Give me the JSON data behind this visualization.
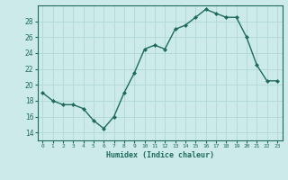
{
  "x": [
    0,
    1,
    2,
    3,
    4,
    5,
    6,
    7,
    8,
    9,
    10,
    11,
    12,
    13,
    14,
    15,
    16,
    17,
    18,
    19,
    20,
    21,
    22,
    23
  ],
  "y": [
    19,
    18,
    17.5,
    17.5,
    17,
    15.5,
    14.5,
    16,
    19,
    21.5,
    24.5,
    25,
    24.5,
    27,
    27.5,
    28.5,
    29.5,
    29,
    28.5,
    28.5,
    26,
    22.5,
    20.5,
    20.5
  ],
  "xlabel": "Humidex (Indice chaleur)",
  "ylim": [
    13,
    30
  ],
  "yticks": [
    14,
    16,
    18,
    20,
    22,
    24,
    26,
    28
  ],
  "xlim": [
    -0.5,
    23.5
  ],
  "bg_color": "#cceae8",
  "grid_color_major": "#b0d8d4",
  "grid_color_minor": "#b0d8d4",
  "line_color": "#1e6b5e",
  "marker_color": "#1e6b5e",
  "font_color": "#1e6b5e",
  "spine_color": "#1e6b5e"
}
